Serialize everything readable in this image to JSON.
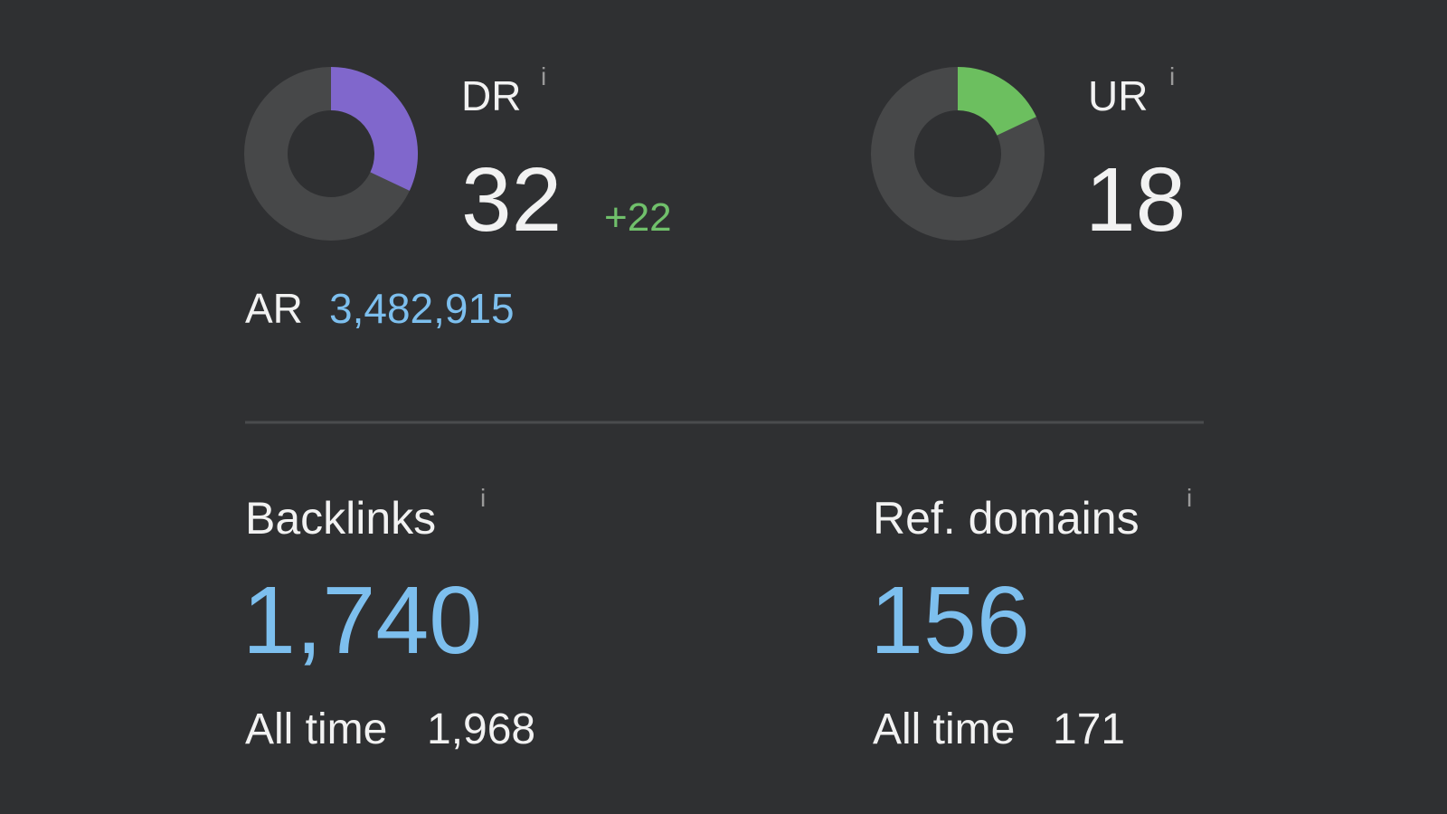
{
  "dr": {
    "label": "DR",
    "info": "i",
    "value": 32,
    "change": "+22",
    "range": [
      0,
      100
    ],
    "color": "#8067cc"
  },
  "ur": {
    "label": "UR",
    "info": "i",
    "value": 18,
    "range": [
      0,
      100
    ],
    "color": "#6cbf5f"
  },
  "ar": {
    "label": "AR",
    "value": "3,482,915"
  },
  "backlinks": {
    "label": "Backlinks",
    "info": "i",
    "value": "1,740",
    "all_time_label": "All time",
    "all_time": "1,968"
  },
  "ref_domains": {
    "label": "Ref. domains",
    "info": "i",
    "value": "156",
    "all_time_label": "All time",
    "all_time": "171"
  }
}
